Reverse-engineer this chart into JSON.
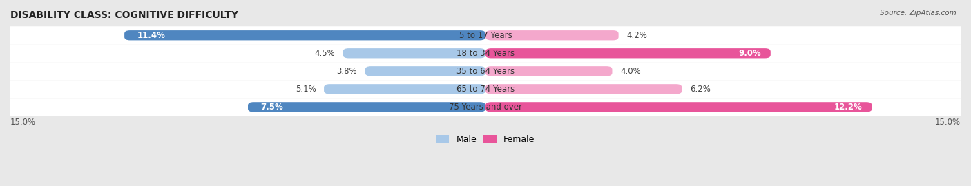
{
  "title": "DISABILITY CLASS: COGNITIVE DIFFICULTY",
  "source": "Source: ZipAtlas.com",
  "categories": [
    "5 to 17 Years",
    "18 to 34 Years",
    "35 to 64 Years",
    "65 to 74 Years",
    "75 Years and over"
  ],
  "male_values": [
    11.4,
    4.5,
    3.8,
    5.1,
    7.5
  ],
  "female_values": [
    4.2,
    9.0,
    4.0,
    6.2,
    12.2
  ],
  "male_color_dark": "#4f86c0",
  "male_color_light": "#a8c8e8",
  "female_color_dark": "#e8559a",
  "female_color_light": "#f4a8cc",
  "max_val": 15.0,
  "bg_color": "#e8e8e8",
  "row_bg_light": "#f2f2f2",
  "row_bg_dark": "#e0e0e0",
  "legend_male": "Male",
  "legend_female": "Female",
  "title_fontsize": 10,
  "bar_height": 0.55,
  "male_dark_threshold": 7.0,
  "female_dark_threshold": 9.0
}
